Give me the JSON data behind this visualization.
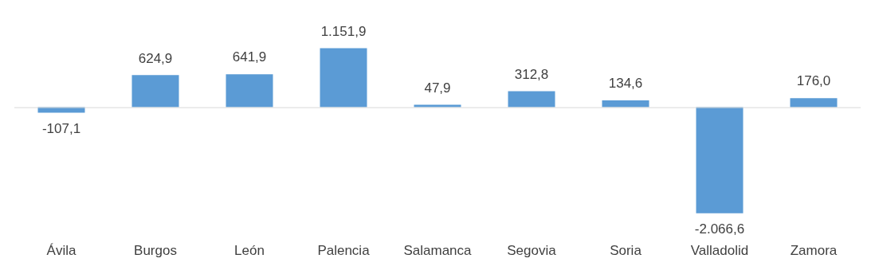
{
  "chart_data": {
    "type": "bar",
    "categories": [
      "Ávila",
      "Burgos",
      "León",
      "Palencia",
      "Salamanca",
      "Segovia",
      "Soria",
      "Valladolid",
      "Zamora"
    ],
    "values": [
      -107.1,
      624.9,
      641.9,
      1151.9,
      47.9,
      312.8,
      134.6,
      -2066.6,
      176.0
    ],
    "value_labels": [
      "-107,1",
      "624,9",
      "641,9",
      "1.151,9",
      "47,9",
      "312,8",
      "134,6",
      "-2.066,6",
      "176,0"
    ],
    "color": "#5b9bd5",
    "grid": false,
    "legend": false
  }
}
